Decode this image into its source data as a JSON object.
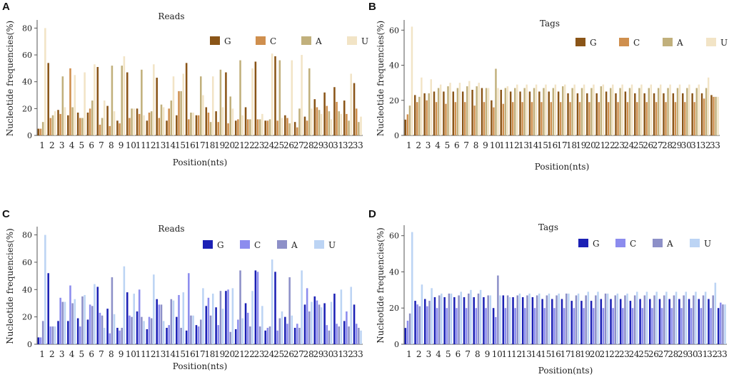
{
  "figure": {
    "colors_top": [
      "#8a5518",
      "#cf8f4e",
      "#c1b07c",
      "#f2e4c6"
    ],
    "colors_bottom": [
      "#1c21b5",
      "#8c8cee",
      "#8d90c8",
      "#bcd4f4"
    ]
  },
  "chart_data": [
    {
      "panel": "A",
      "type": "bar",
      "title": "Reads",
      "xlabel": "Position(nts)",
      "ylabel": "Nucleotide frequencies(%)",
      "ylim": [
        0,
        85
      ],
      "yticks": [
        0,
        20,
        40,
        60,
        80
      ],
      "categories": [
        "1",
        "2",
        "3",
        "4",
        "5",
        "6",
        "7",
        "8",
        "9",
        "10",
        "11",
        "12",
        "13",
        "14",
        "15",
        "16",
        "17",
        "18",
        "19",
        "20",
        "21",
        "22",
        "23",
        "24",
        "25",
        "26",
        "27",
        "28",
        "29",
        "30",
        "31",
        "32",
        "33"
      ],
      "palette": "top",
      "series": [
        {
          "name": "G",
          "values": [
            5,
            54,
            19,
            15,
            17,
            17,
            51,
            22,
            11,
            47,
            20,
            11,
            43,
            11,
            15,
            54,
            15,
            21,
            18,
            47,
            11,
            21,
            55,
            11,
            59,
            15,
            10,
            14,
            27,
            32,
            36,
            26,
            39
          ]
        },
        {
          "name": "C",
          "values": [
            5,
            13,
            16,
            50,
            13,
            20,
            8,
            7,
            9,
            13,
            16,
            17,
            13,
            20,
            33,
            12,
            15,
            17,
            10,
            9,
            12,
            12,
            12,
            11,
            11,
            13,
            6,
            11,
            21,
            22,
            25,
            16,
            20
          ]
        },
        {
          "name": "A",
          "values": [
            10,
            15,
            44,
            21,
            13,
            26,
            13,
            52,
            52,
            20,
            49,
            18,
            23,
            26,
            33,
            17,
            44,
            10,
            49,
            29,
            56,
            12,
            12,
            12,
            56,
            9,
            20,
            50,
            19,
            18,
            18,
            11,
            10
          ]
        },
        {
          "name": "U",
          "values": [
            80,
            18,
            21,
            45,
            47,
            53,
            26,
            18,
            59,
            20,
            15,
            53,
            21,
            44,
            46,
            17,
            30,
            44,
            21,
            20,
            15,
            50,
            16,
            61,
            13,
            56,
            60,
            20,
            16,
            12,
            16,
            46,
            14
          ]
        }
      ],
      "legend": "top-right"
    },
    {
      "panel": "B",
      "type": "bar",
      "title": "Tags",
      "xlabel": "Position(nts)",
      "ylabel": "Nucleotide frequencies(%)",
      "ylim": [
        0,
        65
      ],
      "yticks": [
        0,
        20,
        40,
        60
      ],
      "categories": [
        "1",
        "2",
        "3",
        "4",
        "5",
        "6",
        "7",
        "8",
        "9",
        "10",
        "11",
        "12",
        "13",
        "14",
        "15",
        "16",
        "17",
        "18",
        "19",
        "20",
        "21",
        "22",
        "23",
        "24",
        "25",
        "26",
        "27",
        "28",
        "29",
        "30",
        "31",
        "32",
        "33"
      ],
      "palette": "top",
      "series": [
        {
          "name": "G",
          "values": [
            9,
            23,
            24,
            25,
            25,
            25,
            25,
            26,
            27,
            20,
            26,
            25,
            25,
            25,
            25,
            25,
            25,
            24,
            24,
            24,
            24,
            25,
            24,
            25,
            24,
            24,
            24,
            24,
            24,
            24,
            24,
            24,
            23
          ]
        },
        {
          "name": "C",
          "values": [
            12,
            19,
            20,
            19,
            18,
            19,
            19,
            17,
            19,
            16,
            18,
            19,
            19,
            19,
            19,
            19,
            19,
            19,
            19,
            19,
            19,
            19,
            19,
            19,
            19,
            19,
            19,
            19,
            19,
            19,
            19,
            21,
            22
          ]
        },
        {
          "name": "A",
          "values": [
            17,
            22,
            24,
            27,
            28,
            27,
            28,
            28,
            27,
            38,
            27,
            27,
            27,
            27,
            27,
            27,
            28,
            27,
            27,
            27,
            28,
            27,
            27,
            27,
            27,
            27,
            27,
            27,
            27,
            27,
            27,
            27,
            22
          ]
        },
        {
          "name": "U",
          "values": [
            62,
            33,
            32,
            29,
            30,
            30,
            31,
            30,
            27,
            27,
            28,
            29,
            29,
            29,
            29,
            29,
            29,
            29,
            29,
            29,
            29,
            29,
            29,
            29,
            29,
            29,
            29,
            29,
            29,
            29,
            29,
            33,
            22
          ]
        }
      ],
      "legend": "top-right"
    },
    {
      "panel": "C",
      "type": "bar",
      "title": "Reads",
      "xlabel": "Position(nts)",
      "ylabel": "Nucleotide frequencies(%)",
      "ylim": [
        0,
        85
      ],
      "yticks": [
        0,
        20,
        40,
        60,
        80
      ],
      "categories": [
        "1",
        "2",
        "3",
        "4",
        "5",
        "6",
        "7",
        "8",
        "9",
        "10",
        "11",
        "12",
        "13",
        "14",
        "15",
        "16",
        "17",
        "18",
        "19",
        "20",
        "21",
        "22",
        "23",
        "24",
        "25",
        "26",
        "27",
        "28",
        "29",
        "30",
        "31",
        "32",
        "33"
      ],
      "palette": "bottom",
      "series": [
        {
          "name": "G",
          "values": [
            5,
            52,
            17,
            17,
            19,
            18,
            42,
            26,
            12,
            38,
            24,
            11,
            33,
            12,
            20,
            10,
            14,
            28,
            27,
            39,
            11,
            30,
            54,
            10,
            53,
            20,
            12,
            29,
            35,
            30,
            37,
            17,
            29
          ]
        },
        {
          "name": "C",
          "values": [
            5,
            13,
            34,
            43,
            13,
            29,
            23,
            8,
            10,
            21,
            40,
            20,
            29,
            14,
            36,
            52,
            13,
            34,
            14,
            40,
            18,
            23,
            53,
            12,
            10,
            15,
            15,
            41,
            32,
            14,
            15,
            24,
            15
          ]
        },
        {
          "name": "A",
          "values": [
            17,
            13,
            31,
            30,
            35,
            28,
            21,
            49,
            12,
            20,
            20,
            19,
            29,
            33,
            12,
            21,
            18,
            21,
            39,
            9,
            54,
            13,
            13,
            13,
            19,
            49,
            12,
            24,
            29,
            10,
            13,
            13,
            12
          ]
        },
        {
          "name": "U",
          "values": [
            80,
            13,
            31,
            33,
            36,
            44,
            12,
            22,
            57,
            37,
            17,
            51,
            17,
            32,
            38,
            21,
            41,
            37,
            26,
            41,
            19,
            39,
            28,
            62,
            24,
            21,
            54,
            31,
            27,
            31,
            40,
            42,
            10
          ]
        }
      ],
      "legend": "top-right"
    },
    {
      "panel": "D",
      "type": "bar",
      "title": "Tags",
      "xlabel": "Position(nts)",
      "ylabel": "Nucleotide frequencies(%)",
      "ylim": [
        0,
        65
      ],
      "yticks": [
        0,
        20,
        40,
        60
      ],
      "categories": [
        "1",
        "2",
        "3",
        "4",
        "5",
        "6",
        "7",
        "8",
        "9",
        "10",
        "11",
        "12",
        "13",
        "14",
        "15",
        "16",
        "17",
        "18",
        "19",
        "20",
        "21",
        "22",
        "23",
        "24",
        "25",
        "26",
        "27",
        "28",
        "29",
        "30",
        "31",
        "32",
        "33"
      ],
      "palette": "bottom",
      "series": [
        {
          "name": "G",
          "values": [
            9,
            24,
            25,
            26,
            26,
            26,
            26,
            26,
            26,
            20,
            27,
            26,
            26,
            26,
            25,
            25,
            25,
            24,
            24,
            24,
            25,
            25,
            25,
            24,
            25,
            25,
            25,
            25,
            25,
            25,
            25,
            25,
            20
          ]
        },
        {
          "name": "C",
          "values": [
            13,
            22,
            21,
            20,
            20,
            20,
            20,
            20,
            20,
            15,
            20,
            20,
            20,
            20,
            20,
            20,
            20,
            20,
            20,
            20,
            20,
            20,
            20,
            20,
            20,
            20,
            20,
            20,
            20,
            20,
            20,
            20,
            23
          ]
        },
        {
          "name": "A",
          "values": [
            17,
            21,
            24,
            27,
            28,
            27,
            28,
            28,
            27,
            38,
            27,
            27,
            27,
            27,
            27,
            27,
            28,
            27,
            27,
            27,
            28,
            27,
            27,
            27,
            27,
            27,
            27,
            27,
            27,
            27,
            27,
            27,
            22
          ]
        },
        {
          "name": "U",
          "values": [
            62,
            33,
            31,
            28,
            28,
            29,
            30,
            30,
            27,
            27,
            26,
            28,
            28,
            28,
            28,
            28,
            28,
            28,
            29,
            29,
            28,
            28,
            28,
            29,
            29,
            29,
            29,
            29,
            29,
            29,
            29,
            34,
            22
          ]
        }
      ],
      "legend": "top-right"
    }
  ]
}
